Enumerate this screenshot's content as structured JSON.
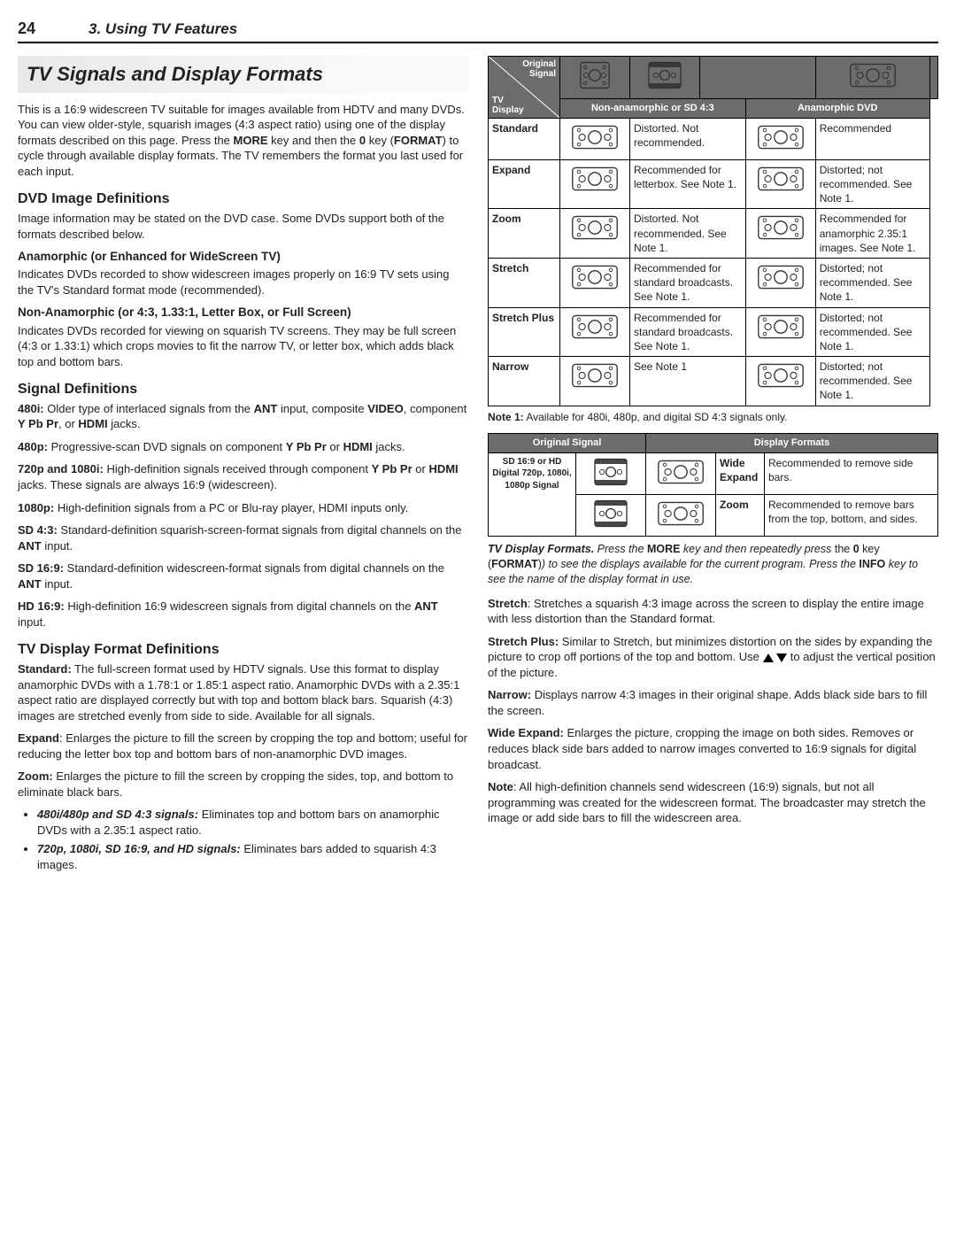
{
  "header": {
    "page_num": "24",
    "chapter": "3.  Using TV Features"
  },
  "left": {
    "title": "TV Signals and Display Formats",
    "intro": "This is a 16:9 widescreen TV suitable for images available from HDTV and many DVDs.  You can view older-style, squarish images (4:3 aspect ratio) using one of the display formats described on this page.  Press the ",
    "intro_more": "MORE",
    "intro_mid": " key and then the ",
    "intro_0": "0",
    "intro_key": " key (",
    "intro_format": "FORMAT",
    "intro_end": ") to cycle through available display formats.  The TV remembers the format you last used for each input.",
    "dvd_h": "DVD Image Definitions",
    "dvd_p": "Image information may be stated on the DVD case.  Some DVDs support both of the formats described below.",
    "ana_h": "Anamorphic (or Enhanced for WideScreen TV)",
    "ana_p": "Indicates DVDs recorded to show widescreen images properly on 16:9 TV sets using the TV's Standard format mode (recommended).",
    "non_h": "Non-Anamorphic (or 4:3, 1.33:1, Letter Box, or Full Screen)",
    "non_p": "Indicates DVDs recorded for viewing on squarish TV screens.  They may be full screen (4:3 or 1.33:1) which crops movies to fit the narrow TV, or letter box, which adds black top and bottom bars.",
    "sig_h": "Signal Definitions",
    "sig_480i_b": "480i:",
    "sig_480i": "  Older type of interlaced signals from the ",
    "sig_480i_ant": "ANT",
    "sig_480i_mid": " input, composite ",
    "sig_480i_video": "VIDEO",
    "sig_480i_comp": ", component ",
    "sig_480i_ypbpr": "Y Pb Pr",
    "sig_480i_or": ", or ",
    "sig_480i_hdmi": "HDMI",
    "sig_480i_end": " jacks.",
    "sig_480p_b": "480p:",
    "sig_480p": "  Progressive-scan DVD signals on component ",
    "sig_480p_ypbpr": "Y Pb Pr",
    "sig_480p_or": " or ",
    "sig_480p_hdmi": "HDMI",
    "sig_480p_end": " jacks.",
    "sig_720_b": "720p and 1080i:",
    "sig_720": "  High-definition signals received through component ",
    "sig_720_ypbpr": "Y Pb Pr",
    "sig_720_or": " or ",
    "sig_720_hdmi": "HDMI",
    "sig_720_end": " jacks.  These signals are always 16:9 (widescreen).",
    "sig_1080p_b": "1080p:",
    "sig_1080p": "  High-definition signals from a PC or Blu-ray player, HDMI inputs only.",
    "sig_sd43_b": "SD 4:3:",
    "sig_sd43": "  Standard-definition squarish-screen-format signals from digital channels on the ",
    "sig_sd43_ant": "ANT",
    "sig_sd43_end": " input.",
    "sig_sd169_b": "SD 16:9:",
    "sig_sd169": "  Standard-definition widescreen-format signals from digital channels on the ",
    "sig_sd169_ant": "ANT",
    "sig_sd169_end": " input.",
    "sig_hd_b": "HD 16:9:",
    "sig_hd": "  High-definition 16:9 widescreen signals from digital channels on the ",
    "sig_hd_ant": "ANT",
    "sig_hd_end": " input.",
    "tvdf_h": "TV Display Format Definitions",
    "std_b": "Standard:",
    "std": "  The full-screen format used by HDTV signals.  Use this format to display anamorphic DVDs with a 1.78:1 or 1.85:1 aspect ratio.  Anamorphic DVDs with a 2.35:1 aspect ratio are displayed correctly but with top and bottom black bars.  Squarish (4:3) images are stretched evenly from side to side.  Available for all signals.",
    "exp_b": "Expand",
    "exp": ":  Enlarges the picture to fill the screen by cropping the top and bottom; useful for reducing the letter box top and bottom bars of non-anamorphic DVD images.",
    "zoom_b": "Zoom:",
    "zoom": "  Enlarges the picture to fill the screen by cropping the sides, top, and bottom to eliminate black bars.",
    "zoom_li1_b": "480i/480p and SD 4:3 signals:",
    "zoom_li1": "  Eliminates top and bottom bars on anamorphic DVDs with a 2.35:1 aspect ratio.",
    "zoom_li2_b": "720p, 1080i, SD 16:9, and HD signals:",
    "zoom_li2": "  Eliminates bars added to squarish 4:3 images."
  },
  "right": {
    "tbl_diag_top": "Original\nSignal",
    "tbl_diag_bot": "TV\nDisplay",
    "tbl_col1": "Non-anamorphic or SD 4:3",
    "tbl_col2": "Anamorphic DVD",
    "rows": [
      {
        "label": "Standard",
        "d1": "Distorted. Not recommended.",
        "d2": "Recommended"
      },
      {
        "label": "Expand",
        "d1": "Recommended for letterbox.  See Note 1.",
        "d2": "Distorted; not recommended. See Note 1."
      },
      {
        "label": "Zoom",
        "d1": "Distorted. Not recommended.  See Note 1.",
        "d2": "Recommended for anamorphic 2.35:1 images. See Note 1."
      },
      {
        "label": "Stretch",
        "d1": "Recommended for standard broadcasts. See Note 1.",
        "d2": "Distorted; not recommended. See Note 1."
      },
      {
        "label": "Stretch Plus",
        "d1": "Recommended for standard broadcasts. See Note 1.",
        "d2": "Distorted; not recommended. See Note 1."
      },
      {
        "label": "Narrow",
        "d1": "See Note 1",
        "d2": "Distorted; not recommended. See Note 1."
      }
    ],
    "note1_b": "Note 1:",
    "note1": "  Available for 480i, 480p, and digital SD 4:3 signals only.",
    "tbl2_h1": "Original Signal",
    "tbl2_h2": "Display Formats",
    "tbl2_sig": "SD 16:9 or HD Digital 720p, 1080i, 1080p Signal",
    "tbl2_r1_f": "Wide Expand",
    "tbl2_r1_d": "Recommended to remove side bars.",
    "tbl2_r2_f": "Zoom",
    "tbl2_r2_d": "Recommended to remove bars from the top, bottom, and sides.",
    "caption_b": "TV Display Formats.",
    "caption_1": "  Press the ",
    "caption_more": "MORE",
    "caption_2": " key and then repeatedly press ",
    "caption_the": "the ",
    "caption_0": "0",
    "caption_3": " key (",
    "caption_format": "FORMAT",
    "caption_4": ") to see the displays available for the current program.  Press the ",
    "caption_info": "INFO",
    "caption_5": " key to see the name of the display format in use.",
    "stretch_b": "Stretch",
    "stretch": ":  Stretches a squarish 4:3 image across the screen to display the entire image with less distortion than the Standard format.",
    "stretchp_b": "Stretch Plus:",
    "stretchp": "  Similar to Stretch, but minimizes distortion on the sides by expanding the picture to crop off portions of the top and bottom.  Use ",
    "stretchp_end": " to adjust the vertical position of the picture.",
    "narrow_b": "Narrow:",
    "narrow": "  Displays narrow 4:3 images in their original shape.  Adds black side bars to fill the screen.",
    "wide_b": "Wide Expand:",
    "wide": "  Enlarges the picture, cropping the image on both sides.  Removes or reduces black side bars added to narrow images converted to 16:9 signals for digital broadcast.",
    "noteR_b": "Note",
    "noteR": ":  All high-definition channels send widescreen (16:9) signals, but not all programming was created for the widescreen format.  The broadcaster may stretch the image or add side bars to fill the widescreen area."
  }
}
